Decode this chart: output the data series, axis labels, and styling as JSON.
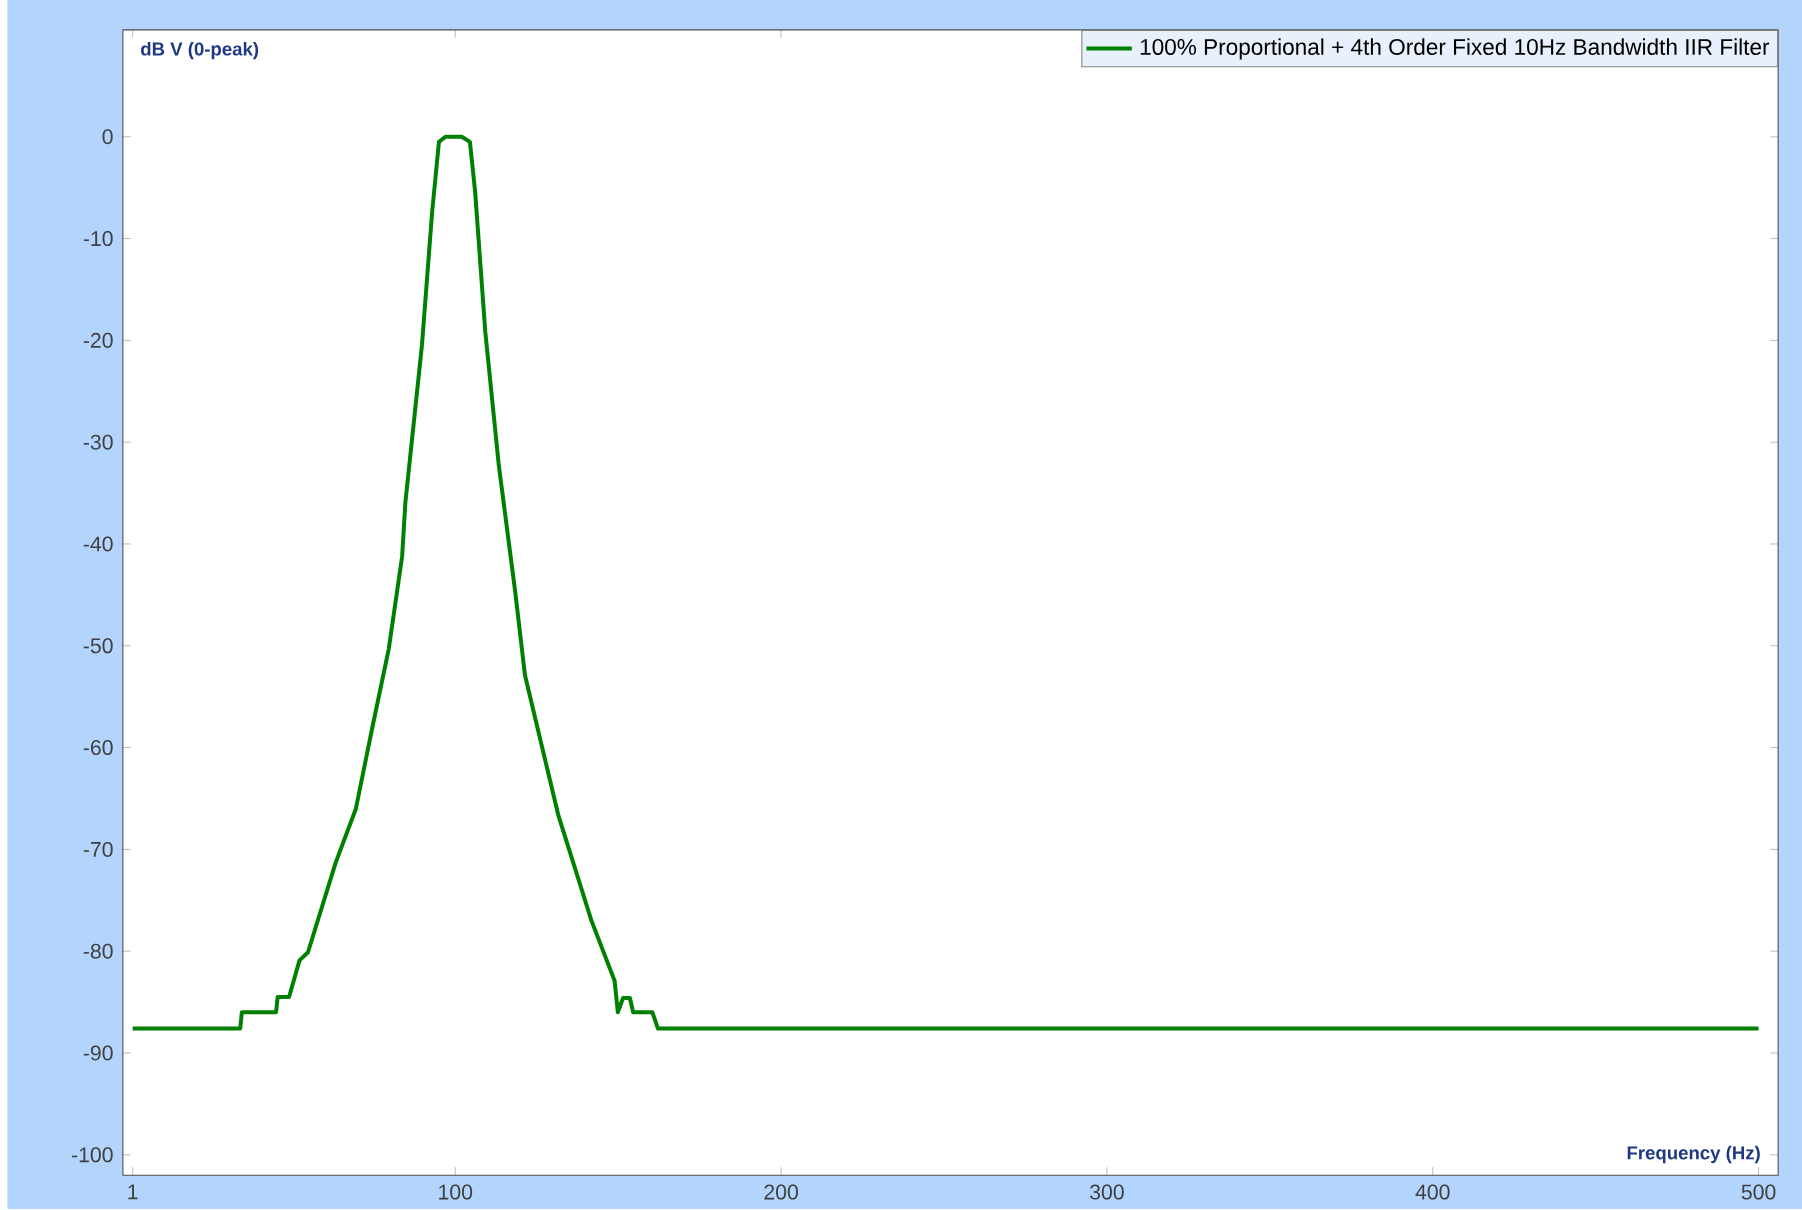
{
  "chart_data": {
    "type": "line",
    "xlabel": "Frequency (Hz)",
    "ylabel": "dB V (0-peak)",
    "xlim": [
      -2,
      506
    ],
    "ylim": [
      -102,
      10.5
    ],
    "xticks": [
      1,
      100,
      200,
      300,
      400,
      500
    ],
    "yticks": [
      0,
      -10,
      -20,
      -30,
      -40,
      -50,
      -60,
      -70,
      -80,
      -90,
      -100
    ],
    "legend": "top right",
    "grid": false,
    "line_style": "solid",
    "series": [
      {
        "name": "100% Proportional + 4th Order Fixed 10Hz Bandwidth IIR Filter",
        "color": "#008000",
        "x": [
          1,
          34,
          34.5,
          45,
          45.5,
          49,
          52.2,
          54.8,
          63.3,
          69.5,
          74.5,
          79.6,
          83.7,
          84.7,
          89.8,
          92.9,
          95,
          97,
          102,
          104.5,
          106.1,
          109.2,
          113.3,
          118.4,
          121.4,
          131.6,
          141.8,
          148.9,
          149.9,
          151.5,
          153.6,
          154.6,
          160.5,
          162.2,
          500
        ],
        "values": [
          -87.6,
          -87.6,
          -86,
          -86,
          -84.5,
          -84.5,
          -80.9,
          -80.1,
          -71.3,
          -66,
          -58.1,
          -50.3,
          -41.2,
          -35.9,
          -20.4,
          -7.4,
          -0.5,
          0,
          0,
          -0.5,
          -5.4,
          -19.1,
          -32.1,
          -44.7,
          -52.9,
          -66.6,
          -77,
          -82.9,
          -86,
          -84.6,
          -84.6,
          -86,
          -86,
          -87.6,
          -87.6
        ]
      }
    ]
  }
}
